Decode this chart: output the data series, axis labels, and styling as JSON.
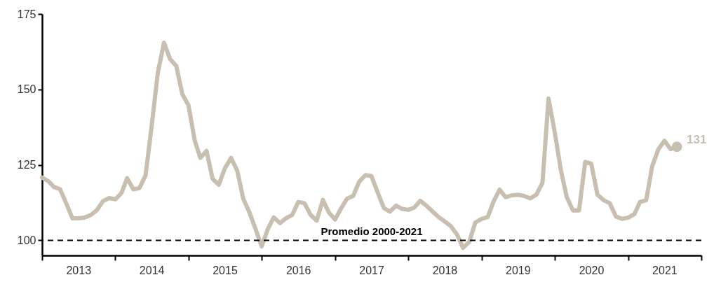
{
  "chart_data": {
    "type": "line",
    "x": [
      "2013-01",
      "2013-02",
      "2013-03",
      "2013-04",
      "2013-05",
      "2013-06",
      "2013-07",
      "2013-08",
      "2013-09",
      "2013-10",
      "2013-11",
      "2013-12",
      "2014-01",
      "2014-02",
      "2014-03",
      "2014-04",
      "2014-05",
      "2014-06",
      "2014-07",
      "2014-08",
      "2014-09",
      "2014-10",
      "2014-11",
      "2014-12",
      "2015-01",
      "2015-02",
      "2015-03",
      "2015-04",
      "2015-05",
      "2015-06",
      "2015-07",
      "2015-08",
      "2015-09",
      "2015-10",
      "2015-11",
      "2015-12",
      "2016-01",
      "2016-02",
      "2016-03",
      "2016-04",
      "2016-05",
      "2016-06",
      "2016-07",
      "2016-08",
      "2016-09",
      "2016-10",
      "2016-11",
      "2016-12",
      "2017-01",
      "2017-02",
      "2017-03",
      "2017-04",
      "2017-05",
      "2017-06",
      "2017-07",
      "2017-08",
      "2017-09",
      "2017-10",
      "2017-11",
      "2017-12",
      "2018-01",
      "2018-02",
      "2018-03",
      "2018-04",
      "2018-05",
      "2018-06",
      "2018-07",
      "2018-08",
      "2018-09",
      "2018-10",
      "2018-11",
      "2018-12",
      "2019-01",
      "2019-02",
      "2019-03",
      "2019-04",
      "2019-05",
      "2019-06",
      "2019-07",
      "2019-08",
      "2019-09",
      "2019-10",
      "2019-11",
      "2019-12",
      "2020-01",
      "2020-02",
      "2020-03",
      "2020-04",
      "2020-05",
      "2020-06",
      "2020-07",
      "2020-08",
      "2020-09",
      "2020-10",
      "2020-11",
      "2020-12",
      "2021-01",
      "2021-02",
      "2021-03",
      "2021-04",
      "2021-05",
      "2021-06",
      "2021-07",
      "2021-08",
      "2021-09"
    ],
    "series": [
      {
        "color": "#c8bfb1",
        "values": [
          120.8,
          119.6,
          117.7,
          116.9,
          112.3,
          107.3,
          107.3,
          107.5,
          108.4,
          110.0,
          113.0,
          114.0,
          113.6,
          115.7,
          120.6,
          116.9,
          117.3,
          121.5,
          137.7,
          155.5,
          165.5,
          160.1,
          157.8,
          148.5,
          144.7,
          133.1,
          127.3,
          129.6,
          120.4,
          118.4,
          123.8,
          127.3,
          123.1,
          113.8,
          109.2,
          103.8,
          98.0,
          103.8,
          107.6,
          105.7,
          107.3,
          108.4,
          112.7,
          112.3,
          108.4,
          106.5,
          113.4,
          109.2,
          106.9,
          110.7,
          113.8,
          114.7,
          119.4,
          121.6,
          121.3,
          115.9,
          110.7,
          109.5,
          111.5,
          110.4,
          110.1,
          110.9,
          113.1,
          111.5,
          109.6,
          107.7,
          106.3,
          104.7,
          101.9,
          97.5,
          99.5,
          105.9,
          107.1,
          107.7,
          112.7,
          116.8,
          114.3,
          114.9,
          115.1,
          114.7,
          113.9,
          115.1,
          119.1,
          147.0,
          135.8,
          123.1,
          114.3,
          109.9,
          109.9,
          126.0,
          125.4,
          115.1,
          113.3,
          112.3,
          107.9,
          107.1,
          107.5,
          108.7,
          112.7,
          113.3,
          124.6,
          130.2,
          133.0,
          130.2,
          131
        ],
        "value_labels": [
          null,
          null,
          null,
          null,
          null,
          null,
          null,
          null,
          null,
          null,
          null,
          null,
          null,
          null,
          null,
          null,
          null,
          null,
          null,
          null,
          null,
          null,
          null,
          null,
          null,
          null,
          null,
          null,
          null,
          null,
          null,
          null,
          null,
          null,
          null,
          null,
          null,
          null,
          null,
          null,
          null,
          null,
          null,
          null,
          null,
          null,
          null,
          null,
          null,
          null,
          null,
          null,
          null,
          null,
          null,
          null,
          null,
          null,
          null,
          null,
          null,
          null,
          null,
          null,
          null,
          null,
          null,
          null,
          null,
          null,
          null,
          null,
          null,
          null,
          null,
          null,
          null,
          null,
          null,
          null,
          null,
          null,
          null,
          null,
          null,
          null,
          null,
          null,
          null,
          null,
          null,
          null,
          null,
          null,
          null,
          null,
          null,
          null,
          null,
          null,
          null,
          null,
          null,
          null,
          "131"
        ]
      }
    ],
    "xlim": [
      "2013-01",
      "2022-01"
    ],
    "xticks": [
      {
        "value": "2013-01",
        "label": null
      },
      {
        "value": "2014-01",
        "label": null
      },
      {
        "value": "2015-01",
        "label": null
      },
      {
        "value": "2016-01",
        "label": null
      },
      {
        "value": "2017-01",
        "label": null
      },
      {
        "value": "2018-01",
        "label": null
      },
      {
        "value": "2019-01",
        "label": null
      },
      {
        "value": "2020-01",
        "label": null
      },
      {
        "value": "2021-01",
        "label": null
      },
      {
        "value": "2022-01",
        "label": null
      },
      {
        "value": "2013-07",
        "label": "2013"
      },
      {
        "value": "2014-07",
        "label": "2014"
      },
      {
        "value": "2015-07",
        "label": "2015"
      },
      {
        "value": "2016-07",
        "label": "2016"
      },
      {
        "value": "2017-07",
        "label": "2017"
      },
      {
        "value": "2018-07",
        "label": "2018"
      },
      {
        "value": "2019-07",
        "label": "2019"
      },
      {
        "value": "2020-07",
        "label": "2020"
      },
      {
        "value": "2021-07",
        "label": "2021"
      }
    ],
    "ylim": [
      95,
      175
    ],
    "yticks": [
      100,
      125,
      150,
      175
    ],
    "grid": false,
    "line_style": "solid",
    "ref_lines": [
      {
        "axis": "y",
        "value": 100,
        "label": "Promedio 2000-2021",
        "color": "#000000",
        "line_style": "dashed"
      }
    ]
  }
}
